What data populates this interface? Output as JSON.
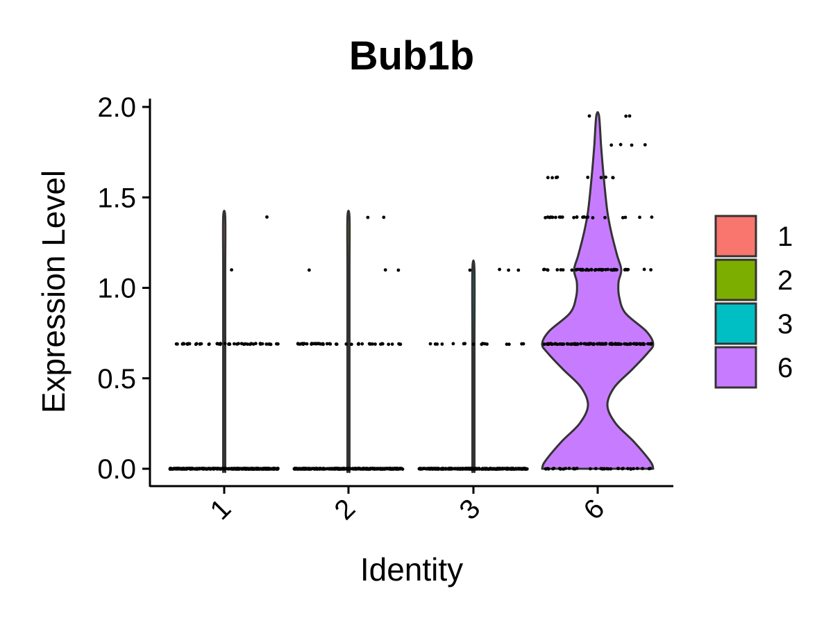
{
  "chart_data": {
    "type": "violin",
    "title": "Bub1b",
    "xlabel": "Identity",
    "ylabel": "Expression Level",
    "categories": [
      "1",
      "2",
      "3",
      "6"
    ],
    "yticks": [
      "0.0",
      "0.5",
      "1.0",
      "1.5",
      "2.0"
    ],
    "ylim": [
      0,
      2.0
    ],
    "legend_position": "right",
    "series": [
      {
        "name": "1",
        "color": "#F8766D",
        "max": 1.39,
        "levels": [
          0,
          0.69,
          1.1,
          1.39
        ]
      },
      {
        "name": "2",
        "color": "#7CAE00",
        "max": 1.39,
        "levels": [
          0,
          0.69,
          1.1,
          1.39
        ]
      },
      {
        "name": "3",
        "color": "#00BFC4",
        "max": 1.1,
        "levels": [
          0,
          0.69,
          1.1
        ]
      },
      {
        "name": "6",
        "color": "#C77CFF",
        "max": 1.95,
        "levels": [
          0,
          0.69,
          1.1,
          1.39,
          1.61,
          1.79,
          1.95
        ]
      }
    ]
  }
}
